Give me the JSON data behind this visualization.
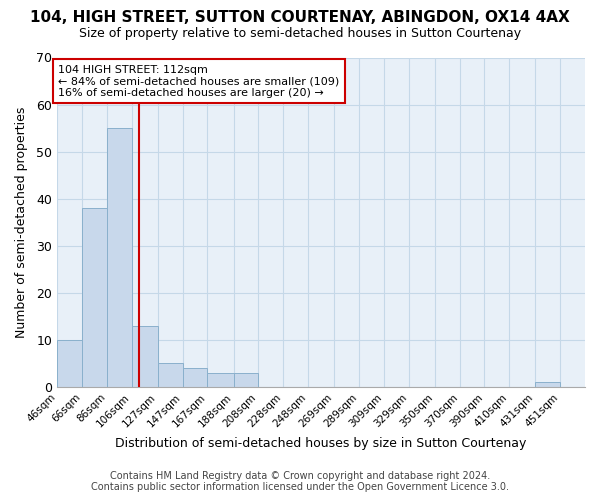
{
  "title1": "104, HIGH STREET, SUTTON COURTENAY, ABINGDON, OX14 4AX",
  "title2": "Size of property relative to semi-detached houses in Sutton Courtenay",
  "xlabel": "Distribution of semi-detached houses by size in Sutton Courtenay",
  "ylabel": "Number of semi-detached properties",
  "footer": "Contains HM Land Registry data © Crown copyright and database right 2024.\nContains public sector information licensed under the Open Government Licence 3.0.",
  "bin_labels": [
    "46sqm",
    "66sqm",
    "86sqm",
    "106sqm",
    "127sqm",
    "147sqm",
    "167sqm",
    "188sqm",
    "208sqm",
    "228sqm",
    "248sqm",
    "269sqm",
    "289sqm",
    "309sqm",
    "329sqm",
    "350sqm",
    "370sqm",
    "390sqm",
    "410sqm",
    "431sqm",
    "451sqm"
  ],
  "bar_heights": [
    10,
    38,
    55,
    13,
    5,
    4,
    3,
    3,
    0,
    0,
    0,
    0,
    0,
    0,
    0,
    0,
    0,
    0,
    0,
    1,
    0
  ],
  "bar_color": "#c8d8eb",
  "bar_edge_color": "#8ab0cc",
  "property_sqm": 112,
  "annotation_line1": "104 HIGH STREET: 112sqm",
  "annotation_line2": "← 84% of semi-detached houses are smaller (109)",
  "annotation_line3": "16% of semi-detached houses are larger (20) →",
  "bin_edges": [
    46,
    66,
    86,
    106,
    127,
    147,
    167,
    188,
    208,
    228,
    248,
    269,
    289,
    309,
    329,
    350,
    370,
    390,
    410,
    431,
    451,
    471
  ],
  "ylim": [
    0,
    70
  ],
  "yticks": [
    0,
    10,
    20,
    30,
    40,
    50,
    60,
    70
  ],
  "red_line_color": "#cc0000",
  "annotation_box_facecolor": "#ffffff",
  "annotation_box_edgecolor": "#cc0000",
  "grid_color": "#c5d8e8",
  "bg_color": "#e8f0f8",
  "title1_fontsize": 11,
  "title2_fontsize": 9,
  "xlabel_fontsize": 9,
  "ylabel_fontsize": 9,
  "footer_fontsize": 7
}
